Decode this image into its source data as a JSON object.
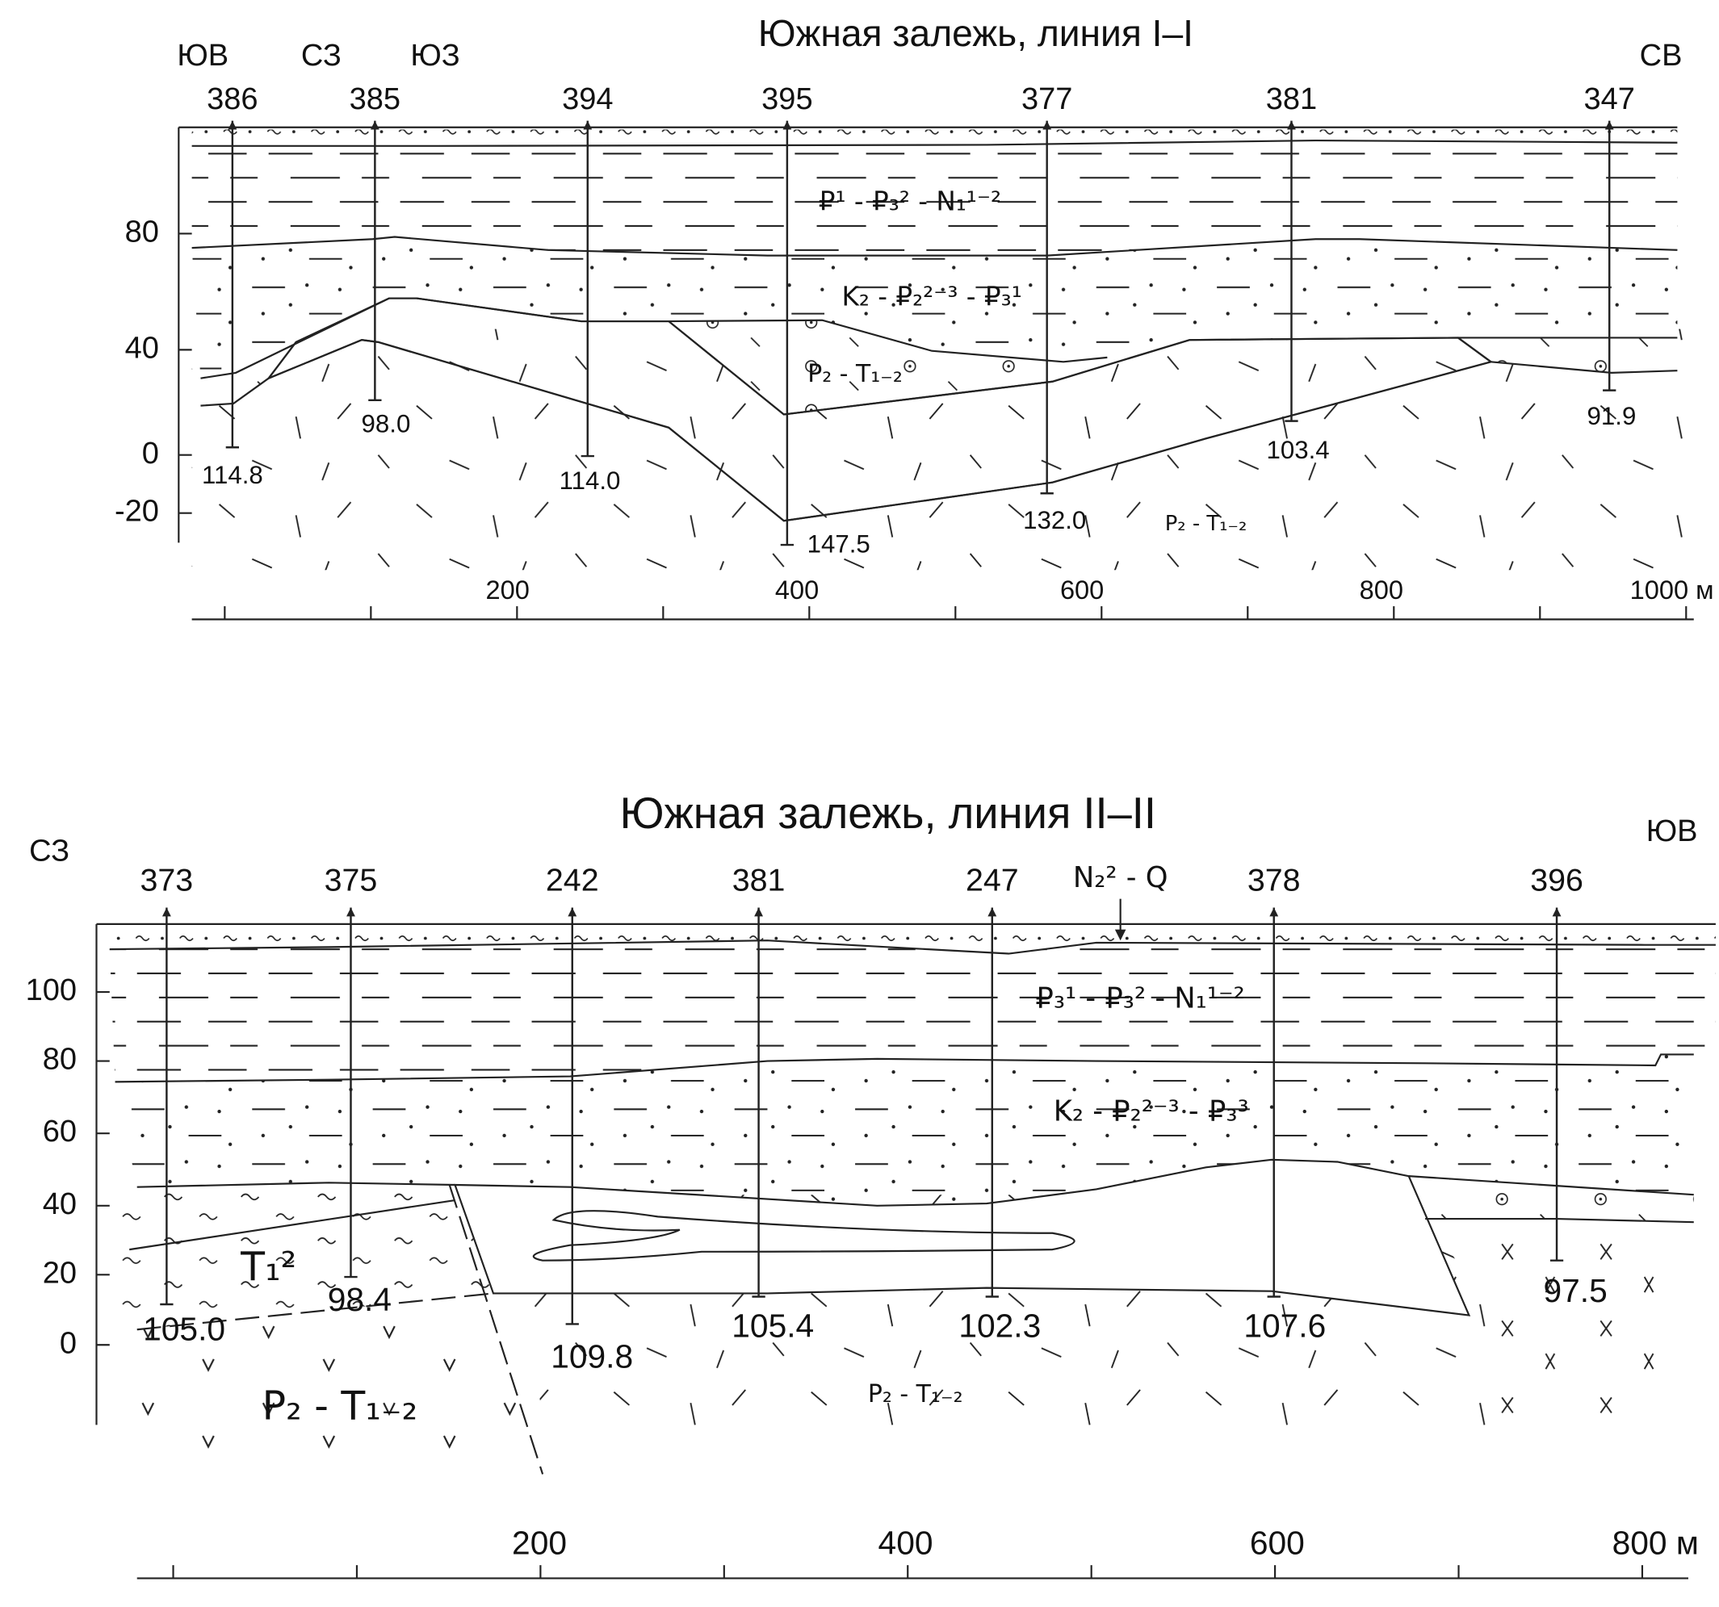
{
  "sections": [
    {
      "title": "Южная залежь, линия I–I",
      "directions": [
        "ЮВ",
        "СЗ",
        "ЮЗ",
        "СВ"
      ],
      "wells": [
        {
          "id": "386",
          "depth": "114.8"
        },
        {
          "id": "385",
          "depth": "98.0"
        },
        {
          "id": "394",
          "depth": "114.0"
        },
        {
          "id": "395",
          "depth": "147.5"
        },
        {
          "id": "377",
          "depth": "132.0"
        },
        {
          "id": "381",
          "depth": "103.4"
        },
        {
          "id": "347",
          "depth": "91.9"
        }
      ],
      "depth_axis": [
        "80",
        "40",
        "0",
        "-20"
      ],
      "distance_axis": [
        "200",
        "400",
        "600",
        "800",
        "1000 м"
      ],
      "formations": [
        "₽¹ - ₽₃² - N₁¹⁻²",
        "K₂ - ₽₂²⁻³ - ₽₃¹",
        "P₂ - T₁₋₂",
        "P₂ - T₁₋₂"
      ]
    },
    {
      "title": "Южная залежь, линия II–II",
      "directions": [
        "СЗ",
        "ЮВ"
      ],
      "wells": [
        {
          "id": "373",
          "depth": "105.0"
        },
        {
          "id": "375",
          "depth": "98.4"
        },
        {
          "id": "242",
          "depth": "109.8"
        },
        {
          "id": "381",
          "depth": "105.4"
        },
        {
          "id": "247",
          "depth": "102.3"
        },
        {
          "id": "378",
          "depth": "107.6"
        },
        {
          "id": "396",
          "depth": "97.5"
        }
      ],
      "depth_axis": [
        "100",
        "80",
        "60",
        "40",
        "20",
        "0"
      ],
      "distance_axis": [
        "200",
        "400",
        "600",
        "800 м"
      ],
      "formations": [
        "N₂² - Q",
        "₽₃¹ - ₽₃² - N₁¹⁻²",
        "K₂ - ₽₂²⁻³ - ₽₃³",
        "T₁²",
        "P₂ - T₁₋₂",
        "P₂ - T₁₋₂"
      ]
    }
  ]
}
